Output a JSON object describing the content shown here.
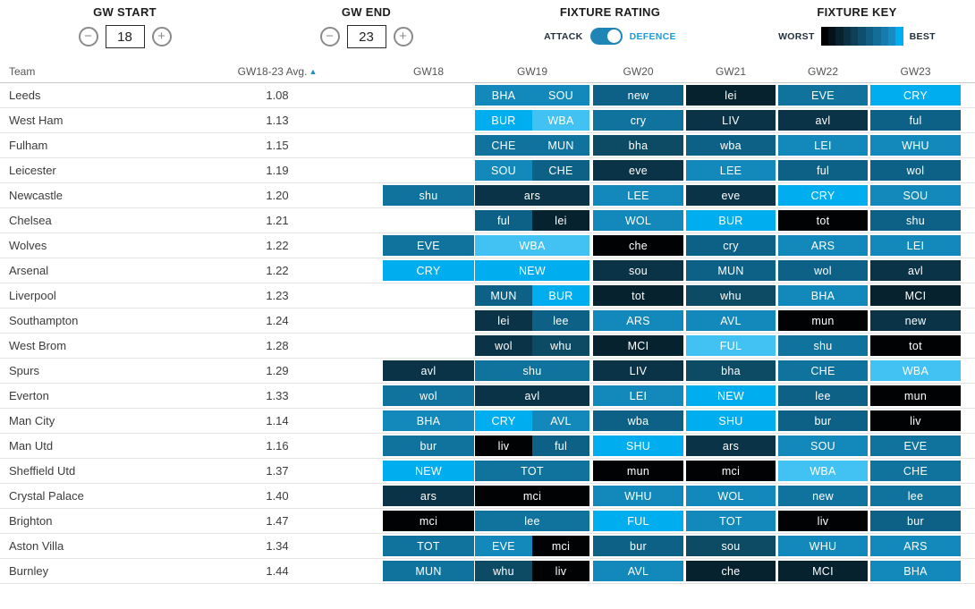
{
  "controls": {
    "gw_start": {
      "label": "GW START",
      "value": "18",
      "minus_icon": "−",
      "plus_icon": "+"
    },
    "gw_end": {
      "label": "GW END",
      "value": "23",
      "minus_icon": "−",
      "plus_icon": "+"
    },
    "fixture_rating": {
      "label": "FIXTURE RATING",
      "attack": "ATTACK",
      "defence": "DEFENCE",
      "selected": "DEFENCE"
    },
    "fixture_key": {
      "label": "FIXTURE KEY",
      "worst": "WORST",
      "best": "BEST"
    }
  },
  "colors": {
    "accent": "#1e8fc1",
    "toggle_track": "#1f85b5",
    "scale": [
      "#000203",
      "#07222f",
      "#0b3347",
      "#0d4a63",
      "#0e6186",
      "#0f739d",
      "#1388ba",
      "#00adee",
      "#41c2f2"
    ],
    "key_gradient": [
      "#000000",
      "#051018",
      "#082230",
      "#0b3144",
      "#0d4058",
      "#0f4f6d",
      "#115e83",
      "#136d98",
      "#157cae",
      "#178bc3",
      "#00adee"
    ]
  },
  "table": {
    "col_team": "Team",
    "col_avg": "GW18-23 Avg.",
    "sort_icon": "▲",
    "gw_columns": [
      "GW18",
      "GW19",
      "GW20",
      "GW21",
      "GW22",
      "GW23"
    ],
    "rows": [
      {
        "team": "Leeds",
        "avg": "1.08",
        "gw": [
          [],
          [
            {
              "o": "BHA",
              "k": 6
            },
            {
              "o": "SOU",
              "k": 6
            }
          ],
          [
            {
              "o": "new",
              "k": 4
            }
          ],
          [
            {
              "o": "lei",
              "k": 1
            }
          ],
          [
            {
              "o": "EVE",
              "k": 5
            }
          ],
          [
            {
              "o": "CRY",
              "k": 7
            }
          ]
        ]
      },
      {
        "team": "West Ham",
        "avg": "1.13",
        "gw": [
          [],
          [
            {
              "o": "BUR",
              "k": 7
            },
            {
              "o": "WBA",
              "k": 8
            }
          ],
          [
            {
              "o": "cry",
              "k": 5
            }
          ],
          [
            {
              "o": "LIV",
              "k": 2
            }
          ],
          [
            {
              "o": "avl",
              "k": 2
            }
          ],
          [
            {
              "o": "ful",
              "k": 4
            }
          ]
        ]
      },
      {
        "team": "Fulham",
        "avg": "1.15",
        "gw": [
          [],
          [
            {
              "o": "CHE",
              "k": 5
            },
            {
              "o": "MUN",
              "k": 5
            }
          ],
          [
            {
              "o": "bha",
              "k": 3
            }
          ],
          [
            {
              "o": "wba",
              "k": 4
            }
          ],
          [
            {
              "o": "LEI",
              "k": 6
            }
          ],
          [
            {
              "o": "WHU",
              "k": 6
            }
          ]
        ]
      },
      {
        "team": "Leicester",
        "avg": "1.19",
        "gw": [
          [],
          [
            {
              "o": "SOU",
              "k": 6
            },
            {
              "o": "CHE",
              "k": 4
            }
          ],
          [
            {
              "o": "eve",
              "k": 2
            }
          ],
          [
            {
              "o": "LEE",
              "k": 6
            }
          ],
          [
            {
              "o": "ful",
              "k": 4
            }
          ],
          [
            {
              "o": "wol",
              "k": 4
            }
          ]
        ]
      },
      {
        "team": "Newcastle",
        "avg": "1.20",
        "gw": [
          [
            {
              "o": "shu",
              "k": 5
            }
          ],
          [
            {
              "o": "ars",
              "k": 2
            }
          ],
          [
            {
              "o": "LEE",
              "k": 6
            }
          ],
          [
            {
              "o": "eve",
              "k": 2
            }
          ],
          [
            {
              "o": "CRY",
              "k": 7
            }
          ],
          [
            {
              "o": "SOU",
              "k": 6
            }
          ]
        ]
      },
      {
        "team": "Chelsea",
        "avg": "1.21",
        "gw": [
          [],
          [
            {
              "o": "ful",
              "k": 4
            },
            {
              "o": "lei",
              "k": 1
            }
          ],
          [
            {
              "o": "WOL",
              "k": 6
            }
          ],
          [
            {
              "o": "BUR",
              "k": 7
            }
          ],
          [
            {
              "o": "tot",
              "k": 0
            }
          ],
          [
            {
              "o": "shu",
              "k": 4
            }
          ]
        ]
      },
      {
        "team": "Wolves",
        "avg": "1.22",
        "gw": [
          [
            {
              "o": "EVE",
              "k": 5
            }
          ],
          [
            {
              "o": "WBA",
              "k": 8
            }
          ],
          [
            {
              "o": "che",
              "k": 0
            }
          ],
          [
            {
              "o": "cry",
              "k": 4
            }
          ],
          [
            {
              "o": "ARS",
              "k": 6
            }
          ],
          [
            {
              "o": "LEI",
              "k": 6
            }
          ]
        ]
      },
      {
        "team": "Arsenal",
        "avg": "1.22",
        "gw": [
          [
            {
              "o": "CRY",
              "k": 7
            }
          ],
          [
            {
              "o": "NEW",
              "k": 7
            }
          ],
          [
            {
              "o": "sou",
              "k": 2
            }
          ],
          [
            {
              "o": "MUN",
              "k": 4
            }
          ],
          [
            {
              "o": "wol",
              "k": 4
            }
          ],
          [
            {
              "o": "avl",
              "k": 2
            }
          ]
        ]
      },
      {
        "team": "Liverpool",
        "avg": "1.23",
        "gw": [
          [],
          [
            {
              "o": "MUN",
              "k": 4
            },
            {
              "o": "BUR",
              "k": 7
            }
          ],
          [
            {
              "o": "tot",
              "k": 1
            }
          ],
          [
            {
              "o": "whu",
              "k": 3
            }
          ],
          [
            {
              "o": "BHA",
              "k": 6
            }
          ],
          [
            {
              "o": "MCI",
              "k": 1
            }
          ]
        ]
      },
      {
        "team": "Southampton",
        "avg": "1.24",
        "gw": [
          [],
          [
            {
              "o": "lei",
              "k": 2
            },
            {
              "o": "lee",
              "k": 4
            }
          ],
          [
            {
              "o": "ARS",
              "k": 6
            }
          ],
          [
            {
              "o": "AVL",
              "k": 6
            }
          ],
          [
            {
              "o": "mun",
              "k": 0
            }
          ],
          [
            {
              "o": "new",
              "k": 2
            }
          ]
        ]
      },
      {
        "team": "West Brom",
        "avg": "1.28",
        "gw": [
          [],
          [
            {
              "o": "wol",
              "k": 2
            },
            {
              "o": "whu",
              "k": 3
            }
          ],
          [
            {
              "o": "MCI",
              "k": 1
            }
          ],
          [
            {
              "o": "FUL",
              "k": 8
            }
          ],
          [
            {
              "o": "shu",
              "k": 5
            }
          ],
          [
            {
              "o": "tot",
              "k": 0
            }
          ]
        ]
      },
      {
        "team": "Spurs",
        "avg": "1.29",
        "gw": [
          [
            {
              "o": "avl",
              "k": 2
            }
          ],
          [
            {
              "o": "shu",
              "k": 5
            }
          ],
          [
            {
              "o": "LIV",
              "k": 2
            }
          ],
          [
            {
              "o": "bha",
              "k": 3
            }
          ],
          [
            {
              "o": "CHE",
              "k": 5
            }
          ],
          [
            {
              "o": "WBA",
              "k": 8
            }
          ]
        ]
      },
      {
        "team": "Everton",
        "avg": "1.33",
        "gw": [
          [
            {
              "o": "wol",
              "k": 5
            }
          ],
          [
            {
              "o": "avl",
              "k": 2
            }
          ],
          [
            {
              "o": "LEI",
              "k": 6
            }
          ],
          [
            {
              "o": "NEW",
              "k": 7
            }
          ],
          [
            {
              "o": "lee",
              "k": 4
            }
          ],
          [
            {
              "o": "mun",
              "k": 0
            }
          ]
        ]
      },
      {
        "team": "Man City",
        "avg": "1.14",
        "gw": [
          [
            {
              "o": "BHA",
              "k": 6
            }
          ],
          [
            {
              "o": "CRY",
              "k": 7
            },
            {
              "o": "AVL",
              "k": 6
            }
          ],
          [
            {
              "o": "wba",
              "k": 4
            }
          ],
          [
            {
              "o": "SHU",
              "k": 7
            }
          ],
          [
            {
              "o": "bur",
              "k": 4
            }
          ],
          [
            {
              "o": "liv",
              "k": 0
            }
          ]
        ]
      },
      {
        "team": "Man Utd",
        "avg": "1.16",
        "gw": [
          [
            {
              "o": "bur",
              "k": 5
            }
          ],
          [
            {
              "o": "liv",
              "k": 0
            },
            {
              "o": "ful",
              "k": 4
            }
          ],
          [
            {
              "o": "SHU",
              "k": 7
            }
          ],
          [
            {
              "o": "ars",
              "k": 2
            }
          ],
          [
            {
              "o": "SOU",
              "k": 6
            }
          ],
          [
            {
              "o": "EVE",
              "k": 5
            }
          ]
        ]
      },
      {
        "team": "Sheffield Utd",
        "avg": "1.37",
        "gw": [
          [
            {
              "o": "NEW",
              "k": 7
            }
          ],
          [
            {
              "o": "TOT",
              "k": 5
            }
          ],
          [
            {
              "o": "mun",
              "k": 0
            }
          ],
          [
            {
              "o": "mci",
              "k": 0
            }
          ],
          [
            {
              "o": "WBA",
              "k": 8
            }
          ],
          [
            {
              "o": "CHE",
              "k": 5
            }
          ]
        ]
      },
      {
        "team": "Crystal Palace",
        "avg": "1.40",
        "gw": [
          [
            {
              "o": "ars",
              "k": 2
            }
          ],
          [
            {
              "o": "mci",
              "k": 0
            }
          ],
          [
            {
              "o": "WHU",
              "k": 6
            }
          ],
          [
            {
              "o": "WOL",
              "k": 6
            }
          ],
          [
            {
              "o": "new",
              "k": 5
            }
          ],
          [
            {
              "o": "lee",
              "k": 5
            }
          ]
        ]
      },
      {
        "team": "Brighton",
        "avg": "1.47",
        "gw": [
          [
            {
              "o": "mci",
              "k": 0
            }
          ],
          [
            {
              "o": "lee",
              "k": 5
            }
          ],
          [
            {
              "o": "FUL",
              "k": 7
            }
          ],
          [
            {
              "o": "TOT",
              "k": 6
            }
          ],
          [
            {
              "o": "liv",
              "k": 0
            }
          ],
          [
            {
              "o": "bur",
              "k": 4
            }
          ]
        ]
      },
      {
        "team": "Aston Villa",
        "avg": "1.34",
        "gw": [
          [
            {
              "o": "TOT",
              "k": 5
            }
          ],
          [
            {
              "o": "EVE",
              "k": 6
            },
            {
              "o": "mci",
              "k": 0
            }
          ],
          [
            {
              "o": "bur",
              "k": 4
            }
          ],
          [
            {
              "o": "sou",
              "k": 3
            }
          ],
          [
            {
              "o": "WHU",
              "k": 6
            }
          ],
          [
            {
              "o": "ARS",
              "k": 6
            }
          ]
        ]
      },
      {
        "team": "Burnley",
        "avg": "1.44",
        "gw": [
          [
            {
              "o": "MUN",
              "k": 5
            }
          ],
          [
            {
              "o": "whu",
              "k": 3
            },
            {
              "o": "liv",
              "k": 0
            }
          ],
          [
            {
              "o": "AVL",
              "k": 6
            }
          ],
          [
            {
              "o": "che",
              "k": 1
            }
          ],
          [
            {
              "o": "MCI",
              "k": 1
            }
          ],
          [
            {
              "o": "BHA",
              "k": 6
            }
          ]
        ]
      }
    ]
  }
}
